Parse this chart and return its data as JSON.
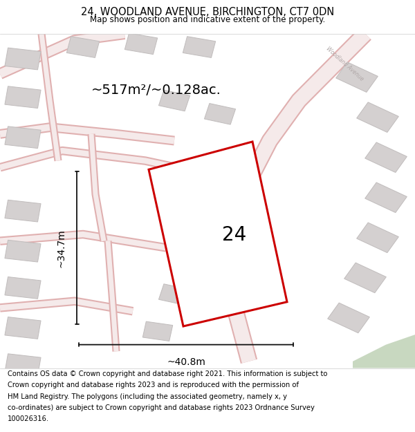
{
  "title": "24, WOODLAND AVENUE, BIRCHINGTON, CT7 0DN",
  "subtitle": "Map shows position and indicative extent of the property.",
  "footer_line1": "Contains OS data © Crown copyright and database right 2021. This information is subject to",
  "footer_line2": "Crown copyright and database rights 2023 and is reproduced with the permission of",
  "footer_line3": "HM Land Registry. The polygons (including the associated geometry, namely x, y",
  "footer_line4": "co-ordinates) are subject to Crown copyright and database rights 2023 Ordnance Survey",
  "footer_line5": "100026316.",
  "area_label": "~517m²/~0.128ac.",
  "width_label": "~40.8m",
  "height_label": "~34.7m",
  "plot_number": "24",
  "map_bg": "#ede9e9",
  "plot_color": "#cc0000",
  "road_fill": "#f5eaea",
  "road_edge": "#e0b0b0",
  "building_face": "#d4d0d0",
  "building_edge": "#c0bcbc",
  "green_color": "#c8d8c0",
  "dim_line_color": "#111111",
  "title_fontsize": 10.5,
  "subtitle_fontsize": 8.5,
  "footer_fontsize": 7.2,
  "area_fontsize": 14,
  "label_fontsize": 10,
  "plot_label_fontsize": 20
}
